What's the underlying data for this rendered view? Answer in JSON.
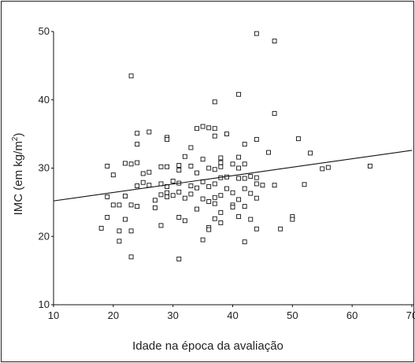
{
  "chart_data": {
    "type": "scatter",
    "xlabel": "Idade na época da avaliação",
    "ylabel": "IMC (em kg/m",
    "ylabel_superscript": "2",
    "ylabel_close": ")",
    "xlim": [
      10,
      70
    ],
    "ylim": [
      10,
      50
    ],
    "x_ticks": [
      {
        "value": 10,
        "label": "10"
      },
      {
        "value": 20,
        "label": "20"
      },
      {
        "value": 30,
        "label": "30"
      },
      {
        "value": 40,
        "label": "40"
      },
      {
        "value": 50,
        "label": "50"
      },
      {
        "value": 60,
        "label": "60"
      },
      {
        "value": 70,
        "label": "70"
      }
    ],
    "y_ticks": [
      {
        "value": 10,
        "label": "10"
      },
      {
        "value": 20,
        "label": "20"
      },
      {
        "value": 30,
        "label": "30"
      },
      {
        "value": 40,
        "label": "40"
      },
      {
        "value": 50,
        "label": "50"
      }
    ],
    "grid": false,
    "marker": "open-square",
    "trendline": {
      "type": "linear",
      "x": [
        10,
        70
      ],
      "y": [
        25.2,
        32.6
      ]
    },
    "points": [
      [
        18,
        21.2
      ],
      [
        19,
        30.3
      ],
      [
        19,
        25.8
      ],
      [
        19,
        22.8
      ],
      [
        20,
        29.0
      ],
      [
        20,
        24.6
      ],
      [
        21,
        24.6
      ],
      [
        21,
        20.8
      ],
      [
        21,
        19.3
      ],
      [
        22,
        30.7
      ],
      [
        22,
        25.9
      ],
      [
        22,
        22.5
      ],
      [
        23,
        43.5
      ],
      [
        23,
        30.6
      ],
      [
        23,
        24.6
      ],
      [
        23,
        20.8
      ],
      [
        23,
        17.0
      ],
      [
        24,
        35.1
      ],
      [
        24,
        33.5
      ],
      [
        24,
        30.8
      ],
      [
        24,
        27.4
      ],
      [
        24,
        24.4
      ],
      [
        25,
        29.2
      ],
      [
        25,
        27.9
      ],
      [
        26,
        35.3
      ],
      [
        26,
        29.4
      ],
      [
        26,
        27.5
      ],
      [
        27,
        25.3
      ],
      [
        27,
        24.2
      ],
      [
        28,
        30.2
      ],
      [
        28,
        27.7
      ],
      [
        28,
        26.1
      ],
      [
        28,
        21.6
      ],
      [
        29,
        34.5
      ],
      [
        29,
        34.2
      ],
      [
        29,
        30.2
      ],
      [
        29,
        27.3
      ],
      [
        29,
        26.4
      ],
      [
        29,
        25.8
      ],
      [
        30,
        28.1
      ],
      [
        30,
        26.0
      ],
      [
        31,
        30.4
      ],
      [
        31,
        29.7
      ],
      [
        31,
        27.8
      ],
      [
        31,
        26.5
      ],
      [
        31,
        22.8
      ],
      [
        31,
        16.7
      ],
      [
        32,
        31.7
      ],
      [
        32,
        25.6
      ],
      [
        32,
        22.3
      ],
      [
        33,
        33.0
      ],
      [
        33,
        30.3
      ],
      [
        33,
        27.4
      ],
      [
        33,
        26.2
      ],
      [
        34,
        35.8
      ],
      [
        34,
        29.3
      ],
      [
        34,
        27.1
      ],
      [
        34,
        24.0
      ],
      [
        35,
        36.1
      ],
      [
        35,
        31.3
      ],
      [
        35,
        28.0
      ],
      [
        35,
        25.5
      ],
      [
        35,
        19.5
      ],
      [
        36,
        35.9
      ],
      [
        36,
        30.0
      ],
      [
        36,
        27.3
      ],
      [
        36,
        25.1
      ],
      [
        36,
        21.3
      ],
      [
        36,
        21.0
      ],
      [
        37,
        39.7
      ],
      [
        37,
        35.8
      ],
      [
        37,
        34.7
      ],
      [
        37,
        29.8
      ],
      [
        37,
        27.7
      ],
      [
        37,
        25.7
      ],
      [
        37,
        24.8
      ],
      [
        37,
        22.6
      ],
      [
        38,
        31.5
      ],
      [
        38,
        30.8
      ],
      [
        38,
        30.2
      ],
      [
        38,
        28.6
      ],
      [
        38,
        26.0
      ],
      [
        38,
        23.5
      ],
      [
        38,
        22.0
      ],
      [
        39,
        35.0
      ],
      [
        39,
        28.7
      ],
      [
        39,
        27.0
      ],
      [
        40,
        30.6
      ],
      [
        40,
        26.4
      ],
      [
        40,
        24.6
      ],
      [
        40,
        24.3
      ],
      [
        41,
        40.8
      ],
      [
        41,
        31.6
      ],
      [
        41,
        30.0
      ],
      [
        41,
        28.5
      ],
      [
        41,
        25.4
      ],
      [
        41,
        22.9
      ],
      [
        42,
        33.5
      ],
      [
        42,
        30.6
      ],
      [
        42,
        28.5
      ],
      [
        42,
        27.0
      ],
      [
        42,
        24.4
      ],
      [
        42,
        19.2
      ],
      [
        43,
        28.8
      ],
      [
        43,
        26.3
      ],
      [
        43,
        22.5
      ],
      [
        44,
        49.7
      ],
      [
        44,
        34.2
      ],
      [
        44,
        28.6
      ],
      [
        44,
        27.7
      ],
      [
        44,
        25.6
      ],
      [
        44,
        21.1
      ],
      [
        45,
        27.5
      ],
      [
        46,
        32.3
      ],
      [
        47,
        48.6
      ],
      [
        47,
        38.0
      ],
      [
        47,
        27.5
      ],
      [
        48,
        21.1
      ],
      [
        50,
        22.9
      ],
      [
        50,
        22.5
      ],
      [
        51,
        34.3
      ],
      [
        52,
        27.6
      ],
      [
        53,
        32.2
      ],
      [
        55,
        29.9
      ],
      [
        56,
        30.1
      ],
      [
        63,
        30.3
      ]
    ]
  }
}
